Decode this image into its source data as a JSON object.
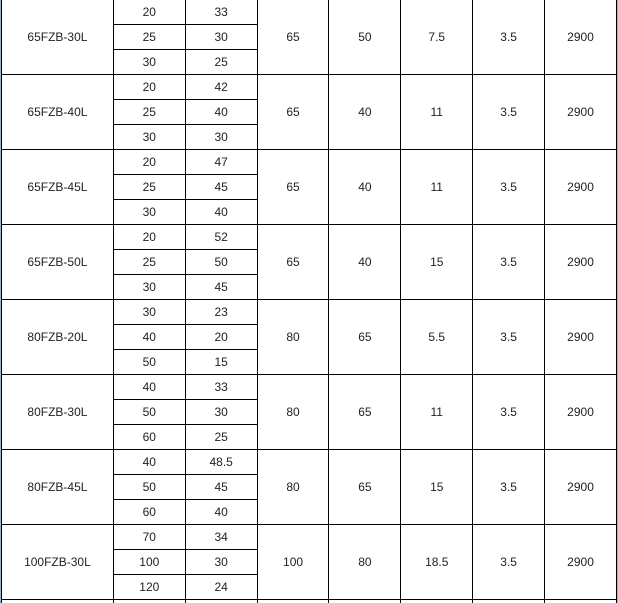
{
  "rows": [
    {
      "model": "65FZB-30L",
      "points": [
        [
          "20",
          "33"
        ],
        [
          "25",
          "30"
        ],
        [
          "30",
          "25"
        ]
      ],
      "c3": "65",
      "c4": "50",
      "c5": "7.5",
      "c6": "3.5",
      "c7": "2900"
    },
    {
      "model": "65FZB-40L",
      "points": [
        [
          "20",
          "42"
        ],
        [
          "25",
          "40"
        ],
        [
          "30",
          "30"
        ]
      ],
      "c3": "65",
      "c4": "40",
      "c5": "11",
      "c6": "3.5",
      "c7": "2900"
    },
    {
      "model": "65FZB-45L",
      "points": [
        [
          "20",
          "47"
        ],
        [
          "25",
          "45"
        ],
        [
          "30",
          "40"
        ]
      ],
      "c3": "65",
      "c4": "40",
      "c5": "11",
      "c6": "3.5",
      "c7": "2900"
    },
    {
      "model": "65FZB-50L",
      "points": [
        [
          "20",
          "52"
        ],
        [
          "25",
          "50"
        ],
        [
          "30",
          "45"
        ]
      ],
      "c3": "65",
      "c4": "40",
      "c5": "15",
      "c6": "3.5",
      "c7": "2900"
    },
    {
      "model": "80FZB-20L",
      "points": [
        [
          "30",
          "23"
        ],
        [
          "40",
          "20"
        ],
        [
          "50",
          "15"
        ]
      ],
      "c3": "80",
      "c4": "65",
      "c5": "5.5",
      "c6": "3.5",
      "c7": "2900"
    },
    {
      "model": "80FZB-30L",
      "points": [
        [
          "40",
          "33"
        ],
        [
          "50",
          "30"
        ],
        [
          "60",
          "25"
        ]
      ],
      "c3": "80",
      "c4": "65",
      "c5": "11",
      "c6": "3.5",
      "c7": "2900"
    },
    {
      "model": "80FZB-45L",
      "points": [
        [
          "40",
          "48.5"
        ],
        [
          "50",
          "45"
        ],
        [
          "60",
          "40"
        ]
      ],
      "c3": "80",
      "c4": "65",
      "c5": "15",
      "c6": "3.5",
      "c7": "2900"
    },
    {
      "model": "100FZB-30L",
      "points": [
        [
          "70",
          "34"
        ],
        [
          "100",
          "30"
        ],
        [
          "120",
          "24"
        ]
      ],
      "c3": "100",
      "c4": "80",
      "c5": "18.5",
      "c6": "3.5",
      "c7": "2900"
    }
  ]
}
